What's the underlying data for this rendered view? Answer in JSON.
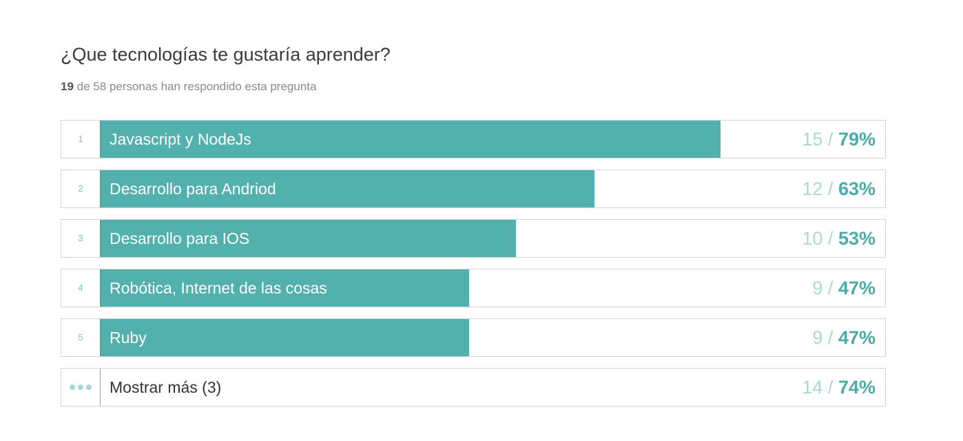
{
  "question": "¿Que tecnologías te gustaría aprender?",
  "summary": {
    "answered": "19",
    "rest": " de 58 personas han respondido esta pregunta"
  },
  "chart_data": {
    "type": "bar",
    "orientation": "horizontal",
    "categories": [
      "Javascript y NodeJs",
      "Desarrollo para Andriod",
      "Desarrollo para IOS",
      "Robótica, Internet de las cosas",
      "Ruby"
    ],
    "ranks": [
      "1",
      "2",
      "3",
      "4",
      "5"
    ],
    "counts": [
      "15",
      "12",
      "10",
      "9",
      "9"
    ],
    "percent_labels": [
      "79%",
      "63%",
      "53%",
      "47%",
      "47%"
    ],
    "values": [
      79,
      63,
      53,
      47,
      47
    ],
    "xlim": [
      0,
      100
    ],
    "bar_color": "#52b0ad"
  },
  "show_more": {
    "label": "Mostrar más (3)",
    "count": "14",
    "percent_label": "74%"
  },
  "separator": "/"
}
